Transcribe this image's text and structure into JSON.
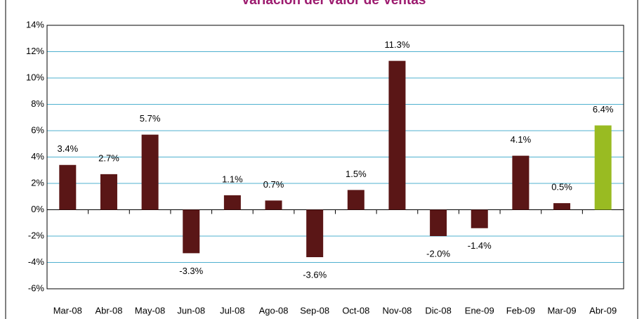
{
  "chart_data": {
    "type": "bar",
    "title": "Variación del Valor de Ventas",
    "categories": [
      "Mar-08",
      "Abr-08",
      "May-08",
      "Jun-08",
      "Jul-08",
      "Ago-08",
      "Sep-08",
      "Oct-08",
      "Nov-08",
      "Dic-08",
      "Ene-09",
      "Feb-09",
      "Mar-09",
      "Abr-09"
    ],
    "values": [
      3.4,
      2.7,
      5.7,
      -3.3,
      1.1,
      0.7,
      -3.6,
      1.5,
      11.3,
      -2.0,
      -1.4,
      4.1,
      0.5,
      6.4
    ],
    "value_labels": [
      "3.4%",
      "2.7%",
      "5.7%",
      "-3.3%",
      "1.1%",
      "0.7%",
      "-3.6%",
      "1.5%",
      "11.3%",
      "-2.0%",
      "-1.4%",
      "4.1%",
      "0.5%",
      "6.4%"
    ],
    "colors": [
      "#5a1616",
      "#5a1616",
      "#5a1616",
      "#5a1616",
      "#5a1616",
      "#5a1616",
      "#5a1616",
      "#5a1616",
      "#5a1616",
      "#5a1616",
      "#5a1616",
      "#5a1616",
      "#5a1616",
      "#99bb22"
    ],
    "ylim": [
      -6,
      14
    ],
    "yticks": [
      {
        "value": -6,
        "label": "-6%"
      },
      {
        "value": -4,
        "label": "-4%"
      },
      {
        "value": -2,
        "label": "-2%"
      },
      {
        "value": 0,
        "label": "0%"
      },
      {
        "value": 2,
        "label": "2%"
      },
      {
        "value": 4,
        "label": "4%"
      },
      {
        "value": 6,
        "label": "6%"
      },
      {
        "value": 8,
        "label": "8%"
      },
      {
        "value": 10,
        "label": "10%"
      },
      {
        "value": 12,
        "label": "12%"
      },
      {
        "value": 14,
        "label": "14%"
      }
    ],
    "grid": true
  }
}
